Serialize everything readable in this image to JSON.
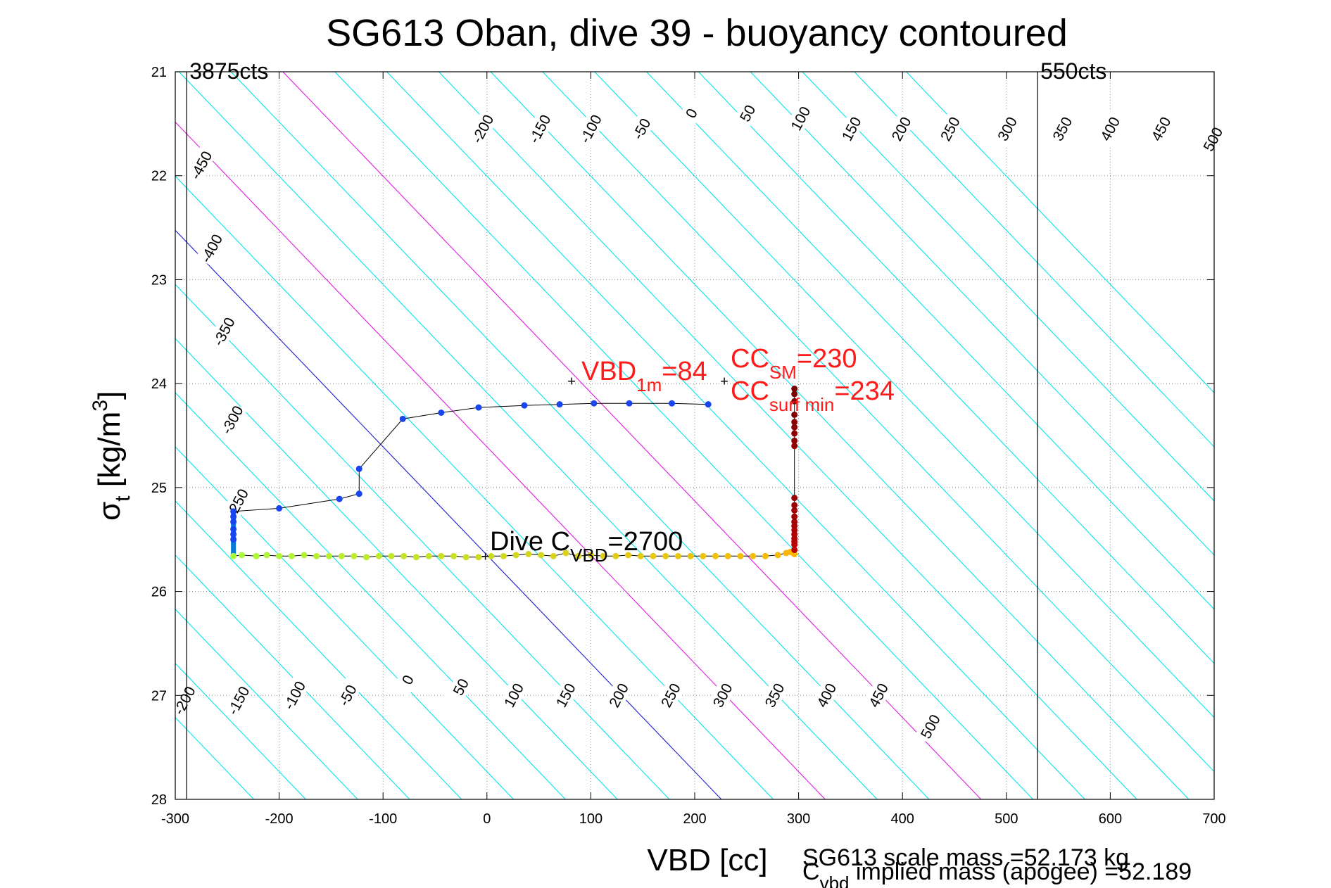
{
  "chart_data": {
    "type": "scatter",
    "title": "SG613 Oban, dive 39 - buoyancy contoured",
    "xlabel": "VBD [cc]",
    "ylabel": {
      "base": "σ",
      "sub": "t",
      "rest": " [kg/m",
      "sup": "3",
      "close": "]"
    },
    "xlim": [
      -300,
      700
    ],
    "ylim": [
      21,
      28
    ],
    "y_reversed": true,
    "grid": true,
    "xticks": [
      -300,
      -200,
      -100,
      0,
      100,
      200,
      300,
      400,
      500,
      600,
      700
    ],
    "xtick_labels": [
      "-300",
      "-200",
      "-100",
      "0",
      "100",
      "200",
      "300",
      "400",
      "500",
      "600",
      "700"
    ],
    "yticks": [
      21,
      22,
      23,
      24,
      25,
      26,
      27,
      28
    ],
    "ytick_labels": [
      "21",
      "22",
      "23",
      "24",
      "25",
      "26",
      "27",
      "28"
    ],
    "limit_lines": [
      {
        "x": -289,
        "label": "3875cts"
      },
      {
        "x": 530,
        "label": "550cts"
      }
    ],
    "contours": {
      "slope_cc_per_sigma": 96,
      "offsets": [
        -450,
        -400,
        -350,
        -300,
        -250,
        -200,
        -150,
        -100,
        -50,
        0,
        50,
        100,
        150,
        200,
        250,
        300,
        350,
        400,
        450,
        500
      ],
      "ref_sigma": 25.65,
      "ref_x0": 0,
      "default_color": "#00e5ee",
      "special_colors": [
        {
          "offset": 0,
          "color": "#1a1ad0"
        },
        {
          "offset": 100,
          "color": "#e01ae0"
        },
        {
          "offset": 250,
          "color": "#e01ae0"
        }
      ],
      "top_labels": {
        "y": 21.5,
        "values": [
          "-450",
          "-400",
          "-350",
          "-300",
          "-200",
          "-150",
          "-100",
          "-50",
          "0",
          "50",
          "100",
          "150",
          "200",
          "250",
          "300",
          "350",
          "400",
          "450",
          "500"
        ],
        "positions": [
          [
            -275,
            21.9
          ],
          [
            -265,
            22.7
          ],
          [
            -253,
            23.5
          ],
          [
            -245,
            24.35
          ],
          [
            -4,
            21.55
          ],
          [
            51,
            21.55
          ],
          [
            100,
            21.55
          ],
          [
            149,
            21.55
          ],
          [
            197,
            21.4
          ],
          [
            251,
            21.4
          ],
          [
            302,
            21.45
          ],
          [
            351,
            21.55
          ],
          [
            399,
            21.55
          ],
          [
            446,
            21.55
          ],
          [
            501,
            21.55
          ],
          [
            554,
            21.55
          ],
          [
            600,
            21.55
          ],
          [
            649,
            21.55
          ],
          [
            699,
            21.65
          ]
        ]
      },
      "mid_labels": {
        "values": [
          "-250"
        ],
        "positions": [
          [
            -240,
            25.15
          ]
        ]
      },
      "bottom_labels": {
        "values": [
          "-200",
          "-150",
          "-100",
          "-50",
          "0",
          "50",
          "100",
          "150",
          "200",
          "250",
          "300",
          "350",
          "400",
          "450",
          "500"
        ],
        "positions": [
          [
            -291,
            27.05
          ],
          [
            -239,
            27.05
          ],
          [
            -185,
            27.0
          ],
          [
            -134,
            27.0
          ],
          [
            -76,
            26.85
          ],
          [
            -25,
            26.92
          ],
          [
            26,
            27.0
          ],
          [
            76,
            27.0
          ],
          [
            127,
            27.0
          ],
          [
            177,
            27.0
          ],
          [
            227,
            27.0
          ],
          [
            277,
            27.0
          ],
          [
            327,
            27.0
          ],
          [
            377,
            27.0
          ],
          [
            427,
            27.3
          ]
        ]
      }
    },
    "descent_points": {
      "name": "",
      "x": [
        -244,
        -244,
        -244,
        -244,
        -244,
        -244,
        -200,
        -142,
        -123,
        -123,
        -81,
        -44,
        -8,
        36,
        70,
        103,
        137,
        178,
        213
      ],
      "y": [
        25.23,
        25.28,
        25.33,
        25.4,
        25.45,
        25.5,
        25.2,
        25.11,
        25.06,
        24.82,
        24.34,
        24.28,
        24.23,
        24.21,
        24.2,
        24.19,
        24.19,
        24.19,
        24.2
      ]
    },
    "bottom_points": {
      "x": [
        -244,
        -236,
        -222,
        -212,
        -200,
        -188,
        -176,
        -164,
        -152,
        -140,
        -128,
        -116,
        -104,
        -92,
        -80,
        -68,
        -56,
        -44,
        -32,
        -20,
        -8,
        4,
        16,
        28,
        40,
        52,
        64,
        76,
        88,
        100,
        112,
        124,
        136,
        148,
        160,
        172,
        184,
        196,
        208,
        220,
        232,
        244,
        256,
        268,
        280,
        288,
        292,
        295,
        296
      ],
      "y": [
        25.66,
        25.65,
        25.66,
        25.65,
        25.66,
        25.66,
        25.65,
        25.66,
        25.66,
        25.66,
        25.66,
        25.67,
        25.66,
        25.66,
        25.66,
        25.67,
        25.66,
        25.66,
        25.66,
        25.67,
        25.67,
        25.66,
        25.66,
        25.65,
        25.64,
        25.65,
        25.66,
        25.63,
        25.66,
        25.65,
        25.66,
        25.66,
        25.65,
        25.66,
        25.66,
        25.66,
        25.66,
        25.66,
        25.66,
        25.66,
        25.66,
        25.66,
        25.66,
        25.66,
        25.65,
        25.63,
        25.62,
        25.63,
        25.64
      ]
    },
    "ascent_points": {
      "x": [
        296,
        296,
        296,
        296,
        296,
        296,
        296,
        296,
        296,
        296,
        296,
        296,
        296,
        296,
        296,
        296,
        296,
        296,
        296,
        296,
        296
      ],
      "y": [
        24.05,
        24.1,
        24.17,
        24.3,
        24.37,
        24.42,
        24.48,
        24.55,
        24.6,
        25.1,
        25.17,
        25.22,
        25.28,
        25.33,
        25.37,
        25.41,
        25.45,
        25.49,
        25.52,
        25.55,
        25.6
      ]
    },
    "annotations": {
      "vbd_1m": {
        "x": 83,
        "y": 23.97,
        "main": "VBD",
        "sub": "1m",
        "rest": "=84"
      },
      "cc_sm": {
        "x": 230,
        "y": 23.97,
        "main": "CC",
        "sub": "SM",
        "rest": "=230"
      },
      "cc_surf": {
        "main": "CC",
        "sub": "surf min",
        "rest": "=234"
      },
      "dive_c": {
        "main": "Dive C",
        "sub": "VBD",
        "rest": "=2700"
      }
    },
    "footer": {
      "scale_mass": "SG613 scale mass =52.173 kg",
      "implied_main": "C",
      "implied_sub": "vbd",
      "implied_rest": " implied mass (apogee) =52.189"
    }
  }
}
